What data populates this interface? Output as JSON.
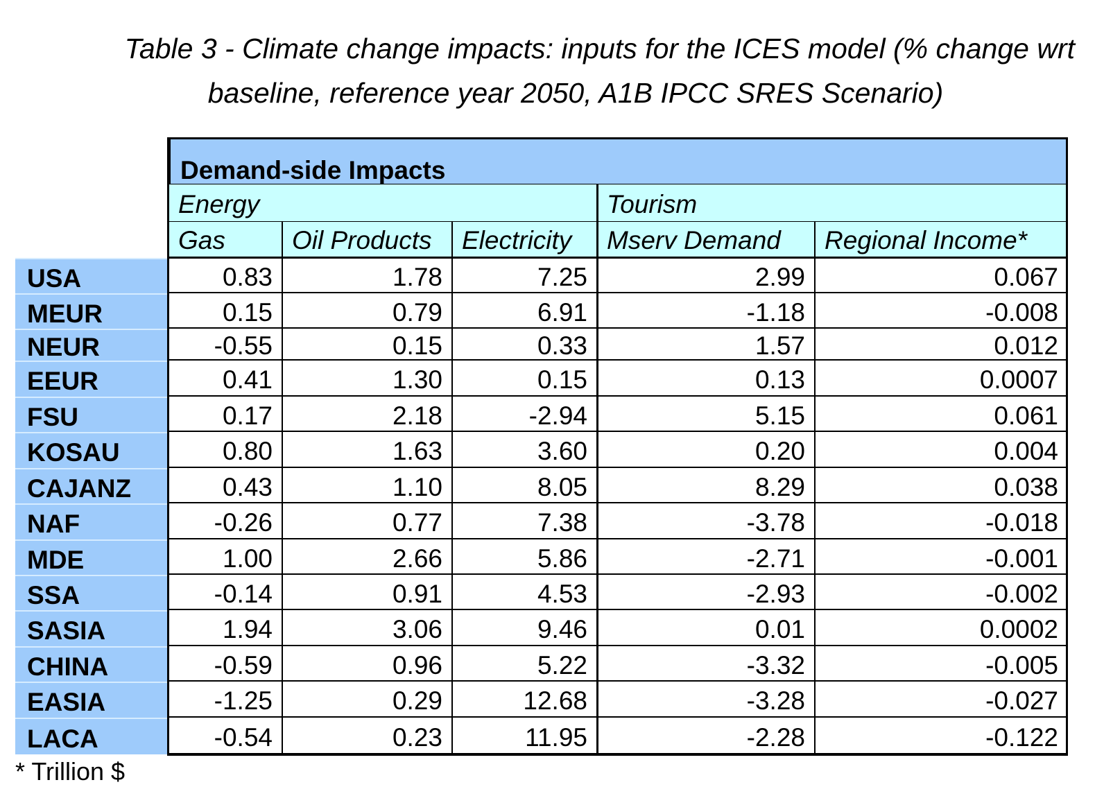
{
  "title": {
    "line1": "Table 3 - Climate change impacts: inputs for the ICES model (% change wrt",
    "line2": "baseline, reference year 2050, A1B IPCC SRES Scenario)"
  },
  "table": {
    "main_header": "Demand-side Impacts",
    "groups": [
      "Energy",
      "Tourism"
    ],
    "columns": [
      "Gas",
      "Oil Products",
      "Electricity",
      "Mserv Demand",
      "Regional Income*"
    ],
    "rows": [
      {
        "region": "USA",
        "values": [
          "0.83",
          "1.78",
          "7.25",
          "2.99",
          "0.067"
        ]
      },
      {
        "region": "MEUR",
        "values": [
          "0.15",
          "0.79",
          "6.91",
          "-1.18",
          "-0.008"
        ]
      },
      {
        "region": "NEUR",
        "values": [
          "-0.55",
          "0.15",
          "0.33",
          "1.57",
          "0.012"
        ]
      },
      {
        "region": "EEUR",
        "values": [
          "0.41",
          "1.30",
          "0.15",
          "0.13",
          "0.0007"
        ]
      },
      {
        "region": "FSU",
        "values": [
          "0.17",
          "2.18",
          "-2.94",
          "5.15",
          "0.061"
        ]
      },
      {
        "region": "KOSAU",
        "values": [
          "0.80",
          "1.63",
          "3.60",
          "0.20",
          "0.004"
        ]
      },
      {
        "region": "CAJANZ",
        "values": [
          "0.43",
          "1.10",
          "8.05",
          "8.29",
          "0.038"
        ]
      },
      {
        "region": "NAF",
        "values": [
          "-0.26",
          "0.77",
          "7.38",
          "-3.78",
          "-0.018"
        ]
      },
      {
        "region": "MDE",
        "values": [
          "1.00",
          "2.66",
          "5.86",
          "-2.71",
          "-0.001"
        ]
      },
      {
        "region": "SSA",
        "values": [
          "-0.14",
          "0.91",
          "4.53",
          "-2.93",
          "-0.002"
        ]
      },
      {
        "region": "SASIA",
        "values": [
          "1.94",
          "3.06",
          "9.46",
          "0.01",
          "0.0002"
        ]
      },
      {
        "region": "CHINA",
        "values": [
          "-0.59",
          "0.96",
          "5.22",
          "-3.32",
          "-0.005"
        ]
      },
      {
        "region": "EASIA",
        "values": [
          "-1.25",
          "0.29",
          "12.68",
          "-3.28",
          "-0.027"
        ]
      },
      {
        "region": "LACA",
        "values": [
          "-0.54",
          "0.23",
          "11.95",
          "-2.28",
          "-0.122"
        ]
      }
    ]
  },
  "footnote": "* Trillion $"
}
